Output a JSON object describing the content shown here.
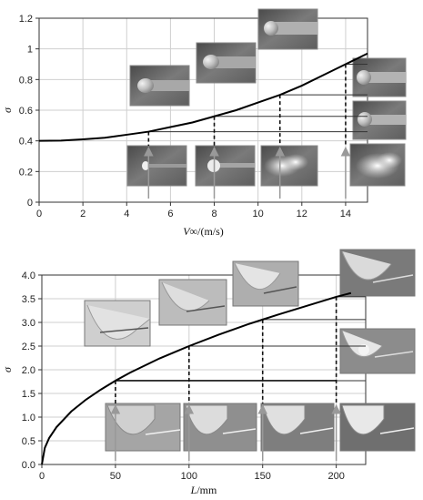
{
  "chart_data": [
    {
      "type": "line",
      "xlabel_var": "V∞",
      "xlabel_unit": "/(m/s)",
      "ylabel": "σ",
      "xlim": [
        0,
        15
      ],
      "ylim": [
        0,
        1.2
      ],
      "x_ticks": [
        0,
        2,
        4,
        6,
        8,
        10,
        12,
        14
      ],
      "y_ticks": [
        0,
        0.2,
        0.4,
        0.6,
        0.8,
        1,
        1.2
      ],
      "x_tick_labels": [
        "0",
        "2",
        "4",
        "6",
        "8",
        "10",
        "12",
        "14"
      ],
      "y_tick_labels": [
        "0",
        "0.2",
        "0.4",
        "0.6",
        "0.8",
        "1",
        "1.2"
      ],
      "grid": true,
      "series": [
        {
          "x": [
            0,
            1,
            2,
            3,
            4,
            5,
            6,
            7,
            8,
            9,
            10,
            11,
            12,
            13,
            14,
            15
          ],
          "y": [
            0.4,
            0.402,
            0.41,
            0.42,
            0.44,
            0.46,
            0.49,
            0.52,
            0.56,
            0.6,
            0.65,
            0.7,
            0.76,
            0.83,
            0.9,
            0.97
          ]
        }
      ],
      "marked_points": [
        {
          "x": 5,
          "y": 0.46
        },
        {
          "x": 8,
          "y": 0.56
        },
        {
          "x": 11,
          "y": 0.7
        },
        {
          "x": 14,
          "y": 0.9
        }
      ]
    },
    {
      "type": "line",
      "xlabel_var": "L",
      "xlabel_unit": "/mm",
      "ylabel": "σ",
      "xlim": [
        0,
        220
      ],
      "ylim": [
        0,
        4.0
      ],
      "x_ticks": [
        0,
        50,
        100,
        150,
        200
      ],
      "y_ticks": [
        0,
        0.5,
        1.0,
        1.5,
        2.0,
        2.5,
        3.0,
        3.5,
        4.0
      ],
      "x_tick_labels": [
        "0",
        "50",
        "100",
        "150",
        "200"
      ],
      "y_tick_labels": [
        "0.0",
        "0.5",
        "1.0",
        "1.5",
        "2.0",
        "2.5",
        "3.0",
        "3.5",
        "4.0"
      ],
      "grid": true,
      "series": [
        {
          "x": [
            0,
            2,
            5,
            10,
            20,
            30,
            40,
            50,
            60,
            80,
            100,
            120,
            140,
            150,
            160,
            180,
            200,
            210
          ],
          "y": [
            0,
            0.35,
            0.56,
            0.79,
            1.12,
            1.37,
            1.58,
            1.77,
            1.94,
            2.24,
            2.5,
            2.74,
            2.96,
            3.06,
            3.16,
            3.35,
            3.54,
            3.62
          ]
        }
      ],
      "marked_points": [
        {
          "x": 50,
          "y": 1.77
        },
        {
          "x": 100,
          "y": 2.5
        },
        {
          "x": 150,
          "y": 3.06
        },
        {
          "x": 200,
          "y": 3.54
        }
      ]
    }
  ]
}
